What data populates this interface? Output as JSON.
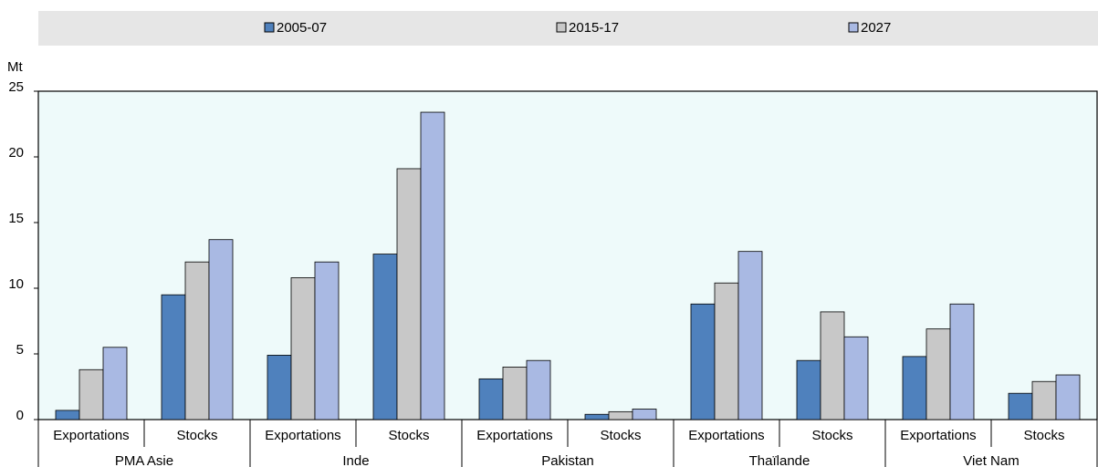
{
  "chart_data": {
    "type": "bar",
    "y_unit": "Mt",
    "categories": [
      "Exportations",
      "Stocks",
      "Exportations",
      "Stocks",
      "Exportations",
      "Stocks",
      "Exportations",
      "Stocks",
      "Exportations",
      "Stocks"
    ],
    "groups": [
      "PMA Asie",
      "Inde",
      "Pakistan",
      "Thaïlande",
      "Viet Nam"
    ],
    "series": [
      {
        "name": "2005-07",
        "color": "#4f81bd",
        "values": [
          0.7,
          9.5,
          4.9,
          12.6,
          3.1,
          0.4,
          8.8,
          4.5,
          4.8,
          2.0
        ]
      },
      {
        "name": "2015-17",
        "color": "#c8c8c8",
        "values": [
          3.8,
          12.0,
          10.8,
          19.1,
          4.0,
          0.6,
          10.4,
          8.2,
          6.9,
          2.9
        ]
      },
      {
        "name": "2027",
        "color": "#a9b9e3",
        "values": [
          5.5,
          13.7,
          12.0,
          23.4,
          4.5,
          0.8,
          12.8,
          6.3,
          8.8,
          3.4
        ]
      }
    ],
    "ylim": [
      0,
      25
    ],
    "yticks": [
      0,
      5,
      10,
      15,
      20,
      25
    ],
    "grid": false,
    "legend": "top"
  }
}
